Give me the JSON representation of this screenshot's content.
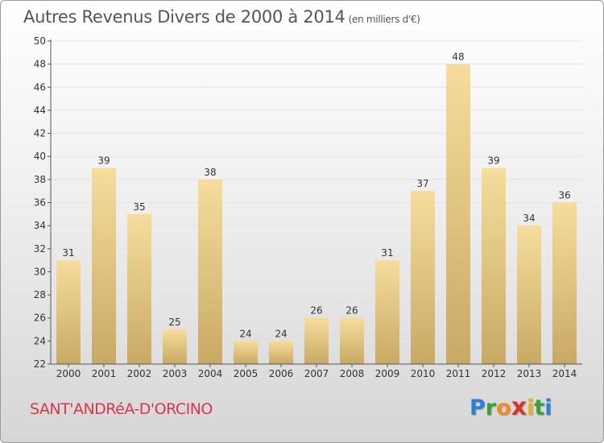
{
  "header": {
    "title": "Autres Revenus Divers de 2000 à 2014",
    "subtitle": "(en milliers d'€)"
  },
  "footer": {
    "commune": "SANT'ANDRéA-D'ORCINO",
    "logo_letters": [
      "P",
      "r",
      "o",
      "x",
      "i",
      "t",
      "i"
    ]
  },
  "colors": {
    "bar_light": "#f6dd9c",
    "bar_dark": "#c8a964",
    "axis": "#555555",
    "grid": "#e4e4e4",
    "title": "#555555",
    "commune": "#d6384b"
  },
  "chart_data": {
    "type": "bar",
    "categories": [
      "2000",
      "2001",
      "2002",
      "2003",
      "2004",
      "2005",
      "2006",
      "2007",
      "2008",
      "2009",
      "2010",
      "2011",
      "2012",
      "2013",
      "2014"
    ],
    "values": [
      31,
      39,
      35,
      25,
      38,
      24,
      24,
      26,
      26,
      31,
      37,
      48,
      39,
      34,
      36
    ],
    "ylim": [
      22,
      50
    ],
    "yticks": [
      22,
      24,
      26,
      28,
      30,
      32,
      34,
      36,
      38,
      40,
      42,
      44,
      46,
      48,
      50
    ],
    "grid": true,
    "data_labels": true
  }
}
